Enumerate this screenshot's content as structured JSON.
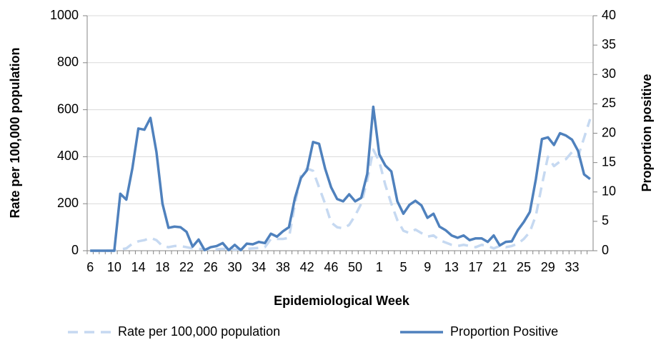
{
  "chart_data": {
    "type": "line",
    "x_label": "Epidemiological Week",
    "y_label": "Rate per 100,000 population",
    "y2_label": "Proportion positive",
    "categories": [
      "6",
      null,
      null,
      null,
      "10",
      null,
      null,
      null,
      "14",
      null,
      null,
      null,
      "18",
      null,
      null,
      null,
      "22",
      null,
      null,
      null,
      "26",
      null,
      null,
      null,
      "30",
      null,
      null,
      null,
      "34",
      null,
      null,
      null,
      "38",
      null,
      null,
      null,
      "42",
      null,
      null,
      null,
      "46",
      null,
      null,
      null,
      "50",
      null,
      null,
      null,
      "1",
      null,
      null,
      null,
      "5",
      null,
      null,
      null,
      "9",
      null,
      null,
      null,
      "13",
      null,
      null,
      null,
      "17",
      null,
      null,
      null,
      "21",
      null,
      null,
      null,
      "25",
      null,
      null,
      null,
      "29",
      null,
      null,
      null,
      "33",
      null,
      null,
      null
    ],
    "ylim": [
      0,
      1000
    ],
    "yticks": [
      0,
      200,
      400,
      600,
      800,
      1000
    ],
    "y2lim": [
      0,
      40
    ],
    "y2ticks": [
      0,
      5,
      10,
      15,
      20,
      25,
      30,
      35,
      40
    ],
    "grid": true,
    "legend": "bottom",
    "series": [
      {
        "name": "Rate per 100,000 population",
        "color": "#c6d9f1",
        "dashed": true,
        "values": [
          0,
          0,
          0,
          0,
          0,
          5,
          10,
          30,
          40,
          45,
          55,
          45,
          20,
          15,
          20,
          20,
          15,
          10,
          8,
          6,
          5,
          6,
          8,
          6,
          5,
          6,
          8,
          10,
          12,
          15,
          50,
          50,
          50,
          55,
          200,
          320,
          350,
          340,
          270,
          200,
          120,
          100,
          95,
          110,
          150,
          200,
          300,
          430,
          380,
          280,
          200,
          130,
          85,
          75,
          90,
          75,
          60,
          65,
          45,
          35,
          25,
          20,
          25,
          20,
          15,
          25,
          20,
          10,
          20,
          15,
          20,
          30,
          50,
          80,
          150,
          280,
          400,
          360,
          380,
          390,
          420,
          400,
          480,
          560
        ]
      },
      {
        "name": "Proportion Positive",
        "color": "#4f81bd",
        "axis": "y2",
        "values": [
          0,
          0,
          0,
          0,
          0,
          9.7,
          8.7,
          14,
          20.8,
          20.6,
          22.6,
          16.8,
          8,
          3.9,
          4.1,
          4,
          3.2,
          0.7,
          1.9,
          0.1,
          0.6,
          0.8,
          1.3,
          0.1,
          1,
          0.1,
          1.2,
          1.1,
          1.5,
          1.3,
          2.9,
          2.4,
          3.3,
          4,
          9,
          12.4,
          13.7,
          18.5,
          18.2,
          14,
          10.8,
          8.8,
          8.4,
          9.6,
          8.4,
          9,
          13.1,
          24.5,
          16.4,
          14.5,
          13.5,
          8.4,
          6.3,
          7.8,
          8.5,
          7.7,
          5.6,
          6.3,
          4.1,
          3.5,
          2.6,
          2.2,
          2.6,
          1.8,
          2.1,
          2.1,
          1.5,
          2.6,
          0.9,
          1.5,
          1.6,
          3.5,
          4.9,
          6.6,
          12.2,
          19,
          19.3,
          18,
          20,
          19.6,
          18.9,
          17,
          13,
          12.2
        ]
      }
    ]
  }
}
